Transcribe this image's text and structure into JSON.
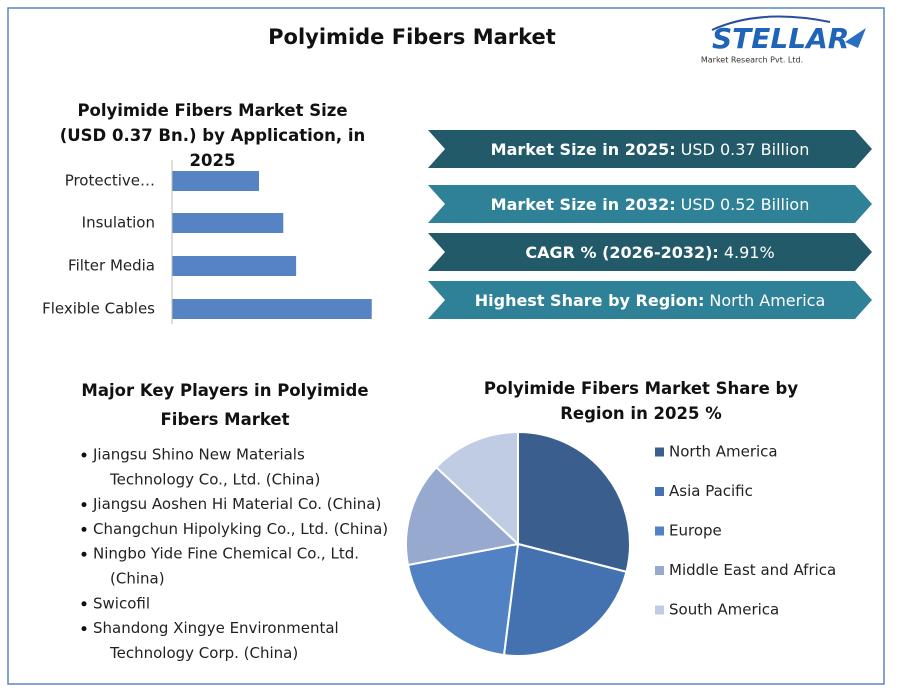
{
  "title": "Polyimide Fibers Market",
  "logo": {
    "name": "STELLAR",
    "tagline": "Market Research Pvt. Ltd."
  },
  "stats": [
    {
      "label": "Market Size in 2025:",
      "value": "USD 0.37 Billion",
      "color": "#235a6a"
    },
    {
      "label": "Market Size in 2032:",
      "value": "USD 0.52 Billion",
      "color": "#2e8196"
    },
    {
      "label": "CAGR % (2026-2032):",
      "value": "4.91%",
      "color": "#235a6a"
    },
    {
      "label": "Highest Share by Region:",
      "value": "North America",
      "color": "#2e8196"
    }
  ],
  "players": {
    "title": "Major Key Players in Polyimide Fibers Market",
    "items": [
      [
        "Jiangsu Shino New Materials",
        "Technology Co., Ltd. (China)"
      ],
      [
        "Jiangsu Aoshen Hi Material Co. (China)"
      ],
      [
        "Changchun Hipolyking Co., Ltd. (China)"
      ],
      [
        "Ningbo Yide Fine Chemical Co., Ltd.",
        "(China)"
      ],
      [
        "Swicofil"
      ],
      [
        "Shandong Xingye Environmental",
        "Technology Corp. (China)"
      ]
    ]
  },
  "chart_data": [
    {
      "type": "bar",
      "orientation": "horizontal",
      "title": "Polyimide Fibers Market Size (USD 0.37 Bn.) by Application, in 2025",
      "categories": [
        "Protective…",
        "Insulation",
        "Filter Media",
        "Flexible Cables"
      ],
      "values": [
        0.061,
        0.078,
        0.087,
        0.14
      ],
      "color": "#5583c3",
      "xlim": [
        0,
        0.15
      ]
    },
    {
      "type": "pie",
      "title": "Polyimide Fibers Market Share by Region in 2025 %",
      "categories": [
        "North America",
        "Asia Pacific",
        "Europe",
        "Middle East and Africa",
        "South America"
      ],
      "values": [
        29,
        23,
        20,
        15,
        13
      ],
      "colors": [
        "#3a5f8f",
        "#4472b0",
        "#5182c4",
        "#97a9cf",
        "#c0cce3"
      ]
    }
  ]
}
